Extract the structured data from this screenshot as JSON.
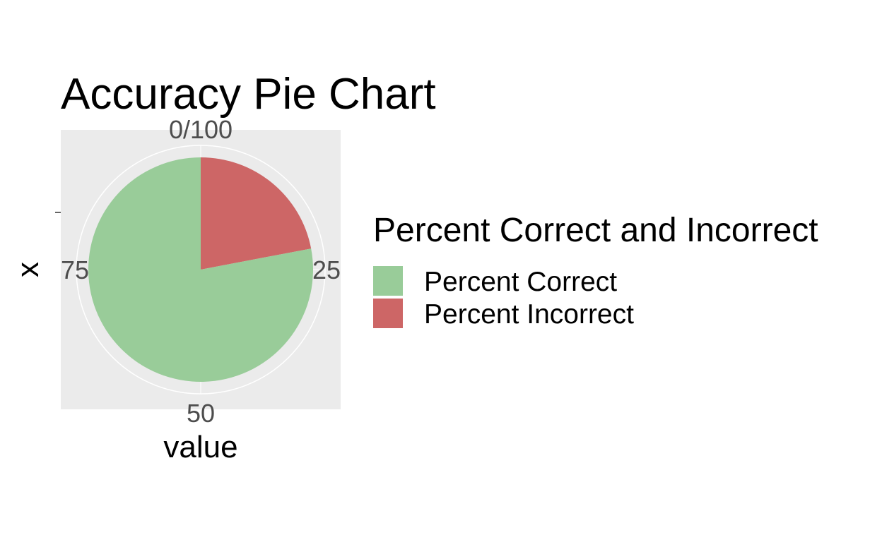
{
  "chart_data": {
    "type": "pie",
    "title": "Accuracy Pie Chart",
    "xlabel": "value",
    "ylabel": "x",
    "theta_ticks": [
      {
        "value": 0,
        "label": "0/100"
      },
      {
        "value": 25,
        "label": "25"
      },
      {
        "value": 50,
        "label": "50"
      },
      {
        "value": 75,
        "label": "75"
      }
    ],
    "theta_range": [
      0,
      100
    ],
    "grid": true,
    "legend": {
      "title": "Percent Correct and Incorrect",
      "position": "right"
    },
    "slices": [
      {
        "label": "Percent Incorrect",
        "value": 22,
        "color": "#cd6666"
      },
      {
        "label": "Percent Correct",
        "value": 78,
        "color": "#99cc99"
      }
    ],
    "legend_items": [
      {
        "label": "Percent Correct",
        "color": "#99cc99"
      },
      {
        "label": "Percent Incorrect",
        "color": "#cd6666"
      }
    ],
    "panel_background": "#ebebeb",
    "grid_color": "#ffffff"
  }
}
